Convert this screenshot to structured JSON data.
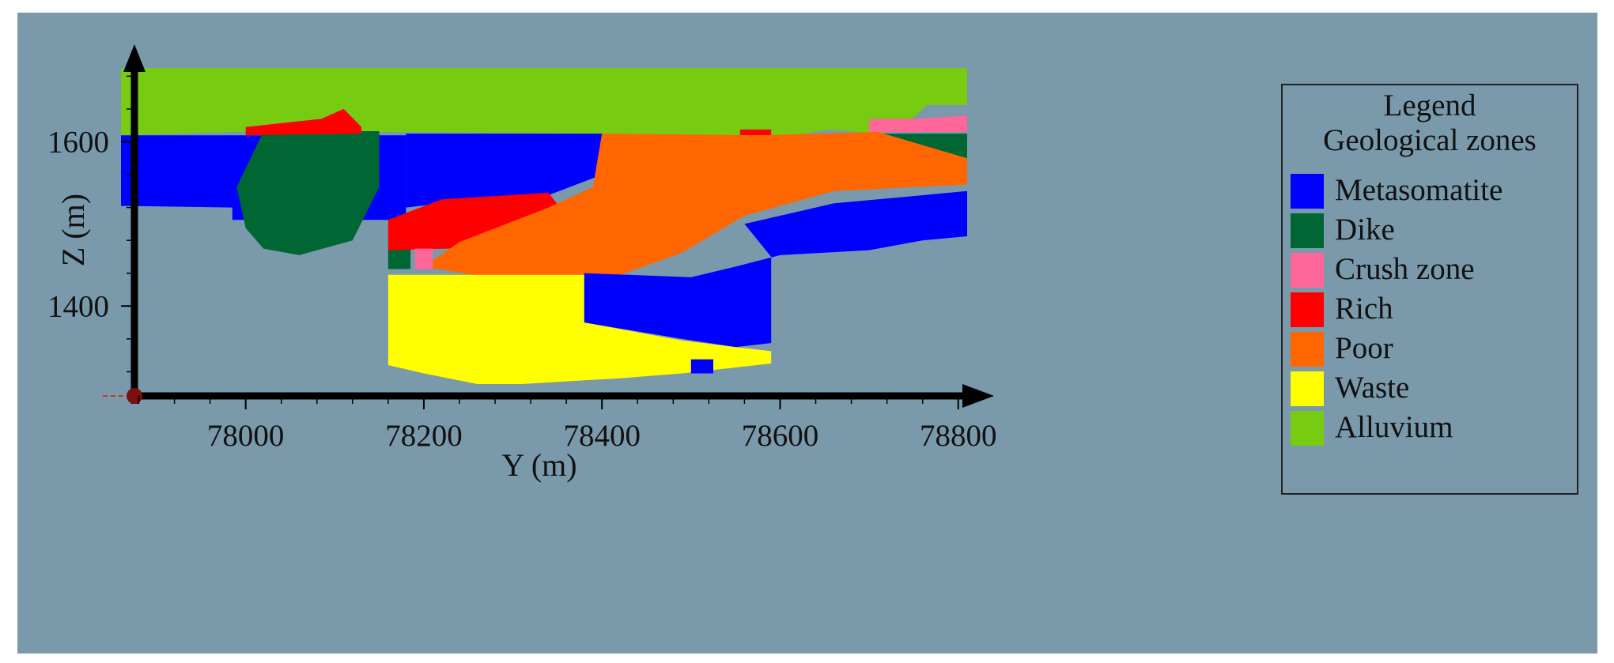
{
  "chart_data": {
    "type": "heatmap",
    "xlabel": "Y (m)",
    "ylabel": "Z (m)",
    "x_ticks": [
      78000,
      78200,
      78400,
      78600,
      78800
    ],
    "y_ticks": [
      1400,
      1600
    ],
    "xlim": [
      77860,
      78810
    ],
    "ylim": [
      1305,
      1690
    ],
    "legend": {
      "title": "Legend",
      "subtitle": "Geological zones",
      "placement": "right"
    },
    "zones": [
      {
        "name": "Metasomatite",
        "color": "#0000ff"
      },
      {
        "name": "Dike",
        "color": "#006633"
      },
      {
        "name": "Crush zone",
        "color": "#ff6699"
      },
      {
        "name": "Rich",
        "color": "#ff0000"
      },
      {
        "name": "Poor",
        "color": "#ff6600"
      },
      {
        "name": "Waste",
        "color": "#ffff00"
      },
      {
        "name": "Alluvium",
        "color": "#77cc11"
      }
    ],
    "regions": [
      {
        "zone": "Alluvium",
        "polygon": [
          [
            77860,
            1690
          ],
          [
            78810,
            1690
          ],
          [
            78810,
            1645
          ],
          [
            78765,
            1645
          ],
          [
            78740,
            1620
          ],
          [
            78710,
            1610
          ],
          [
            78655,
            1615
          ],
          [
            78560,
            1598
          ],
          [
            78515,
            1592
          ],
          [
            78460,
            1588
          ],
          [
            78400,
            1610
          ],
          [
            78020,
            1613
          ],
          [
            77860,
            1608
          ]
        ]
      },
      {
        "zone": "Metasomatite",
        "polygon": [
          [
            77860,
            1608
          ],
          [
            78180,
            1608
          ],
          [
            78180,
            1505
          ],
          [
            77985,
            1505
          ],
          [
            77985,
            1520
          ],
          [
            77860,
            1522
          ]
        ]
      },
      {
        "zone": "Metasomatite",
        "polygon": [
          [
            78180,
            1610
          ],
          [
            78400,
            1610
          ],
          [
            78400,
            1560
          ],
          [
            78340,
            1535
          ],
          [
            78220,
            1525
          ],
          [
            78180,
            1520
          ]
        ]
      },
      {
        "zone": "Dike",
        "polygon": [
          [
            78020,
            1613
          ],
          [
            78150,
            1613
          ],
          [
            78150,
            1545
          ],
          [
            78120,
            1480
          ],
          [
            78060,
            1462
          ],
          [
            78020,
            1470
          ],
          [
            78000,
            1495
          ],
          [
            77990,
            1545
          ]
        ]
      },
      {
        "zone": "Dike",
        "polygon": [
          [
            78160,
            1470
          ],
          [
            78185,
            1470
          ],
          [
            78185,
            1445
          ],
          [
            78160,
            1445
          ]
        ]
      },
      {
        "zone": "Dike",
        "polygon": [
          [
            78700,
            1610
          ],
          [
            78810,
            1610
          ],
          [
            78810,
            1570
          ],
          [
            78760,
            1570
          ],
          [
            78700,
            1580
          ]
        ]
      },
      {
        "zone": "Rich",
        "polygon": [
          [
            78000,
            1618
          ],
          [
            78085,
            1628
          ],
          [
            78110,
            1640
          ],
          [
            78130,
            1618
          ],
          [
            78130,
            1610
          ],
          [
            78000,
            1608
          ]
        ]
      },
      {
        "zone": "Rich",
        "polygon": [
          [
            78160,
            1505
          ],
          [
            78220,
            1530
          ],
          [
            78340,
            1538
          ],
          [
            78360,
            1510
          ],
          [
            78300,
            1472
          ],
          [
            78160,
            1468
          ]
        ]
      },
      {
        "zone": "Rich",
        "polygon": [
          [
            78555,
            1615
          ],
          [
            78590,
            1615
          ],
          [
            78590,
            1608
          ],
          [
            78555,
            1608
          ]
        ]
      },
      {
        "zone": "Poor",
        "polygon": [
          [
            78400,
            1610
          ],
          [
            78580,
            1608
          ],
          [
            78710,
            1612
          ],
          [
            78810,
            1580
          ],
          [
            78810,
            1548
          ],
          [
            78660,
            1540
          ],
          [
            78560,
            1510
          ],
          [
            78490,
            1465
          ],
          [
            78400,
            1430
          ],
          [
            78300,
            1430
          ],
          [
            78200,
            1448
          ],
          [
            78240,
            1478
          ],
          [
            78340,
            1520
          ],
          [
            78390,
            1545
          ]
        ]
      },
      {
        "zone": "Crush zone",
        "polygon": [
          [
            78190,
            1470
          ],
          [
            78210,
            1470
          ],
          [
            78210,
            1445
          ],
          [
            78190,
            1445
          ]
        ]
      },
      {
        "zone": "Crush zone",
        "polygon": [
          [
            78700,
            1628
          ],
          [
            78750,
            1628
          ],
          [
            78810,
            1632
          ],
          [
            78810,
            1612
          ],
          [
            78700,
            1612
          ]
        ]
      },
      {
        "zone": "Metasomatite",
        "polygon": [
          [
            78560,
            1500
          ],
          [
            78660,
            1525
          ],
          [
            78810,
            1540
          ],
          [
            78810,
            1485
          ],
          [
            78760,
            1480
          ],
          [
            78700,
            1468
          ],
          [
            78600,
            1462
          ],
          [
            78550,
            1448
          ],
          [
            78500,
            1435
          ],
          [
            78430,
            1438
          ],
          [
            78380,
            1440
          ],
          [
            78380,
            1380
          ],
          [
            78490,
            1360
          ],
          [
            78550,
            1350
          ],
          [
            78590,
            1355
          ],
          [
            78590,
            1460
          ]
        ]
      },
      {
        "zone": "Waste",
        "polygon": [
          [
            78160,
            1438
          ],
          [
            78380,
            1438
          ],
          [
            78380,
            1380
          ],
          [
            78490,
            1358
          ],
          [
            78550,
            1350
          ],
          [
            78590,
            1345
          ],
          [
            78590,
            1330
          ],
          [
            78490,
            1318
          ],
          [
            78420,
            1312
          ],
          [
            78310,
            1305
          ],
          [
            78260,
            1305
          ],
          [
            78200,
            1318
          ],
          [
            78160,
            1328
          ]
        ]
      },
      {
        "zone": "Metasomatite",
        "polygon": [
          [
            78500,
            1335
          ],
          [
            78525,
            1335
          ],
          [
            78525,
            1318
          ],
          [
            78500,
            1318
          ]
        ]
      }
    ]
  }
}
